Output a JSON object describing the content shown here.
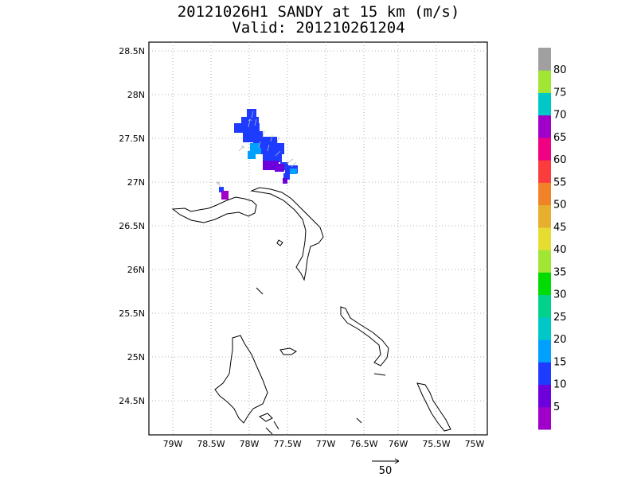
{
  "title_line1": "20121026H1 SANDY at 15 km (m/s)",
  "title_line2": "Valid: 201210261204",
  "map": {
    "lon_ticks": [
      "79W",
      "78.5W",
      "78W",
      "77.5W",
      "77W",
      "76.5W",
      "76W",
      "75.5W",
      "75W"
    ],
    "lat_ticks": [
      "28.5N",
      "28N",
      "27.5N",
      "27N",
      "26.5N",
      "26N",
      "25.5N",
      "25N",
      "24.5N"
    ]
  },
  "colorbar": {
    "labels": [
      "5",
      "10",
      "15",
      "20",
      "25",
      "30",
      "35",
      "40",
      "45",
      "50",
      "55",
      "60",
      "65",
      "70",
      "75",
      "80"
    ],
    "colors": [
      "#a000c8",
      "#6e00dc",
      "#1e3cff",
      "#00a0ff",
      "#00c8c8",
      "#00d28c",
      "#00dc00",
      "#a0e632",
      "#e6dc32",
      "#e6af2d",
      "#f08228",
      "#fa3c3c",
      "#f00082",
      "#a000c8",
      "#00c8c8",
      "#a0e632",
      "#a0a0a0"
    ]
  },
  "wind_cell_colors": {
    "blue15": "#1e3cff",
    "purple10": "#6e00dc",
    "cyan20": "#00a0ff",
    "violet5": "#a000c8"
  },
  "reference_vector": {
    "label": "50"
  }
}
